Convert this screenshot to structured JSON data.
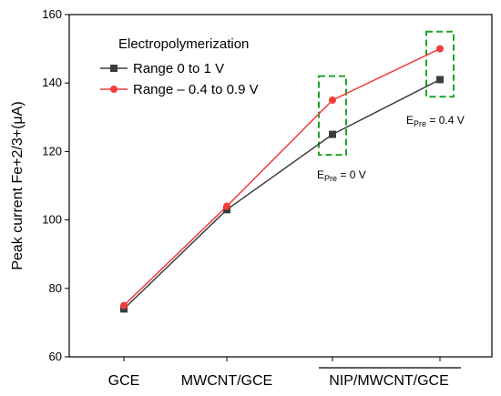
{
  "chart_data": {
    "type": "line",
    "ylabel": "Peak current Fe+2/3+(μA)",
    "ylim": [
      60,
      160
    ],
    "yticks": [
      "60",
      "80",
      "100",
      "120",
      "140",
      "160"
    ],
    "categories": [
      "GCE",
      "MWCNT/GCE",
      "NIP/MWCNT/GCE",
      ""
    ],
    "legend": {
      "title": "Electropolymerization",
      "placement": "top-left"
    },
    "series": [
      {
        "name": "Range 0 to 1 V",
        "color": "#3c3c3c",
        "marker": "square",
        "values": [
          74,
          103,
          125,
          141
        ]
      },
      {
        "name": "Range – 0.4 to 0.9 V",
        "color": "#f23b3b",
        "marker": "circle",
        "values": [
          75,
          104,
          135,
          150
        ]
      }
    ],
    "annotations": [
      {
        "base": "E",
        "sub": "Pre",
        "rest": " = 0 V",
        "category_index": 2
      },
      {
        "base": "E",
        "sub": "Pre",
        "rest": " = 0.4 V",
        "category_index": 3
      }
    ],
    "highlight_boxes": [
      {
        "category_index": 2,
        "color": "#1fa32a",
        "range": [
          119,
          142
        ]
      },
      {
        "category_index": 3,
        "color": "#1fa32a",
        "range": [
          136,
          155
        ]
      }
    ]
  }
}
